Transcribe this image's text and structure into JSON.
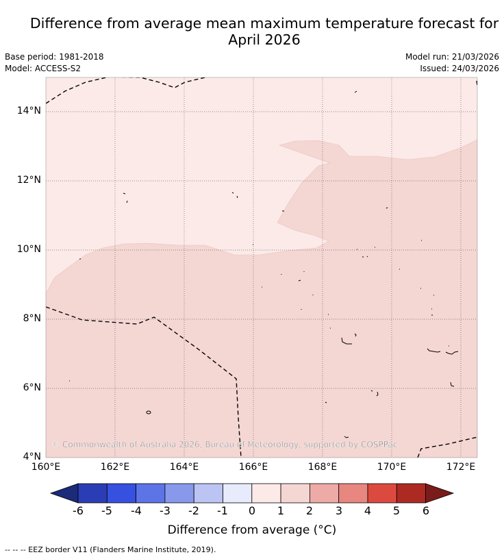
{
  "title_line1": "Difference from average mean maximum temperature forecast for",
  "title_line2": "April 2026",
  "meta": {
    "base_period": "Base period: 1981-2018",
    "model": "Model: ACCESS-S2",
    "model_run": "Model run: 21/03/2026",
    "issued": "Issued: 24/03/2026"
  },
  "map": {
    "lon_labels": [
      "160°E",
      "162°E",
      "164°E",
      "166°E",
      "168°E",
      "170°E",
      "172°E"
    ],
    "lat_labels": [
      "14°N",
      "12°N",
      "10°N",
      "8°N",
      "6°N",
      "4°N"
    ],
    "copyright": "© Commonwealth of Australia 2026, Bureau of Meteorology, supported by COSPPac",
    "colors": {
      "zero_to_one": "#fbeae8",
      "one_to_two": "#f4d6d3",
      "border": "#000000"
    }
  },
  "colorbar": {
    "ticks": [
      "-6",
      "-5",
      "-4",
      "-3",
      "-2",
      "-1",
      "0",
      "1",
      "2",
      "3",
      "4",
      "5",
      "6"
    ],
    "colors": [
      "#1b2b7a",
      "#2a3db5",
      "#3650e0",
      "#5d74e6",
      "#8899ec",
      "#bcc4f3",
      "#e7ebfb",
      "#fbeae8",
      "#f4d6d3",
      "#eeaaa7",
      "#e88680",
      "#dc4a3f",
      "#ad2a22",
      "#7a1c1a"
    ],
    "label": "Difference from average (°C)"
  },
  "footer": "-- -- -- EEZ border V11 (Flanders Marine Institute, 2019)."
}
